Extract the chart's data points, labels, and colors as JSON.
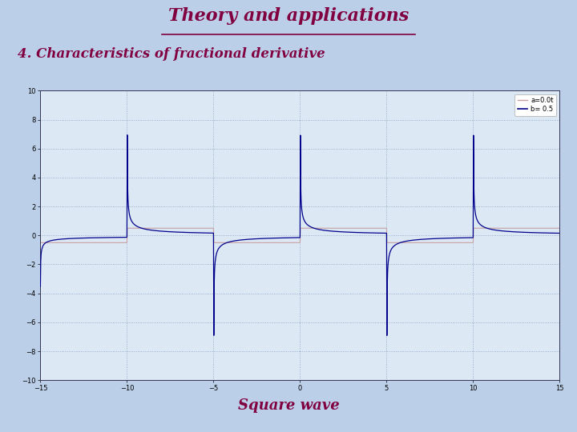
{
  "title": "Theory and applications",
  "subtitle": "4. Characteristics of fractional derivative",
  "footer": "Square wave",
  "legend_sq": "a=0.0t",
  "legend_frac": "b= 0.5",
  "xlim": [
    -15,
    15
  ],
  "ylim": [
    -10,
    10
  ],
  "ytick_vals": [
    -10,
    -8,
    -6,
    -4,
    -2,
    0,
    2,
    4,
    6,
    8,
    10
  ],
  "xtick_vals": [
    -15,
    -10,
    -5,
    0,
    5,
    10,
    15
  ],
  "square_wave_color": "#c8a0a0",
  "frac_deriv_color": "#00008b",
  "bg_color": "#bccfe8",
  "plot_bg_color": "#dde8f5",
  "title_color": "#800040",
  "alpha_order": 0.5,
  "period": 10,
  "amplitude": 0.5,
  "sq_amplitude": 0.5,
  "dt": 0.02
}
